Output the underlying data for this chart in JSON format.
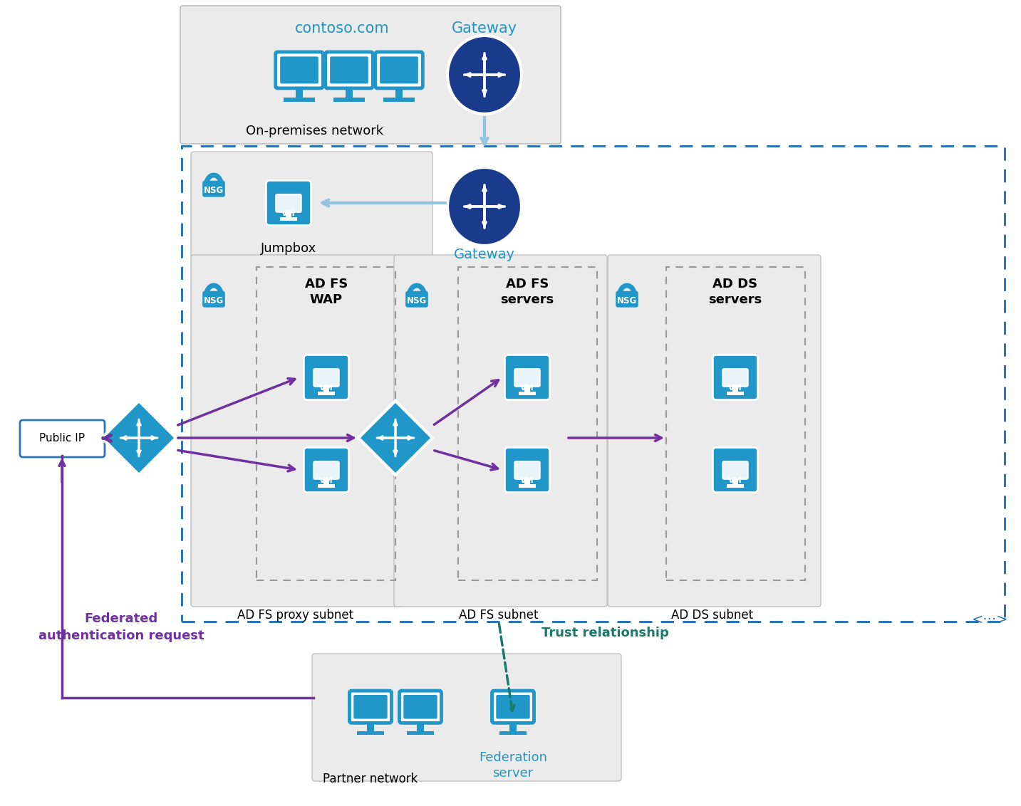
{
  "bg_color": "#ffffff",
  "blue_dark": "#1a3a8c",
  "blue_mid": "#2e75b6",
  "blue_icon": "#2196c8",
  "blue_light_arrow": "#92c4e0",
  "purple": "#7030a0",
  "teal": "#1a7a6e",
  "gray_box": "#e8e8e8",
  "gray_border": "#b0b0b0",
  "dotted_blue": "#2e75b6",
  "text_black": "#000000",
  "text_blue": "#2196c8",
  "text_purple": "#7030a0",
  "text_teal": "#1a7a6e",
  "on_prem_label": "On-premises network",
  "contoso_label": "contoso.com",
  "gateway_label_top": "Gateway",
  "gateway_label_mid": "Gateway",
  "jumpbox_label": "Jumpbox",
  "nsg_label": "NSG",
  "adfs_proxy_label": "AD FS\nWAP",
  "adfs_proxy_subnet": "AD FS proxy subnet",
  "adfs_label": "AD FS\nservers",
  "adfs_subnet": "AD FS subnet",
  "adds_label": "AD DS\nservers",
  "adds_subnet": "AD DS subnet",
  "partner_label": "Partner network",
  "federation_label": "Federation\nserver",
  "public_ip_label": "Public IP",
  "trust_label": "Trust relationship",
  "federated_label": "Federated\nauthentication request"
}
